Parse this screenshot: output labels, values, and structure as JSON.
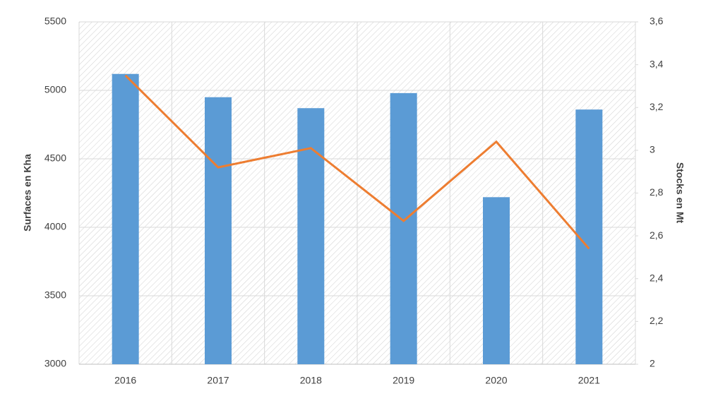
{
  "chart_data": {
    "type": "bar-line",
    "y_label": "Surfaces en Kha",
    "y2_label": "Stocks en Mt",
    "categories": [
      "2016",
      "2017",
      "2018",
      "2019",
      "2020",
      "2021"
    ],
    "series": [
      {
        "type": "bar",
        "color": "#5b9bd5",
        "values": [
          5120,
          4950,
          4870,
          4980,
          4220,
          4860
        ]
      },
      {
        "type": "line",
        "axis": "y2",
        "color": "#ed7d31",
        "values": [
          3.35,
          2.92,
          3.01,
          2.67,
          3.04,
          2.54
        ]
      }
    ],
    "ylim": [
      3000,
      5500
    ],
    "yticks": [
      3000,
      3500,
      4000,
      4500,
      5000,
      5500
    ],
    "y2lim": [
      2,
      3.6
    ],
    "y2ticks": [
      2,
      {
        "value": 2.2,
        "label": "2,2"
      },
      {
        "value": 2.4,
        "label": "2,4"
      },
      {
        "value": 2.6,
        "label": "2,6"
      },
      {
        "value": 2.8,
        "label": "2,8"
      },
      3,
      {
        "value": 3.2,
        "label": "3,2"
      },
      {
        "value": 3.4,
        "label": "3,4"
      },
      {
        "value": 3.6,
        "label": "3,6"
      }
    ],
    "grid": true
  }
}
